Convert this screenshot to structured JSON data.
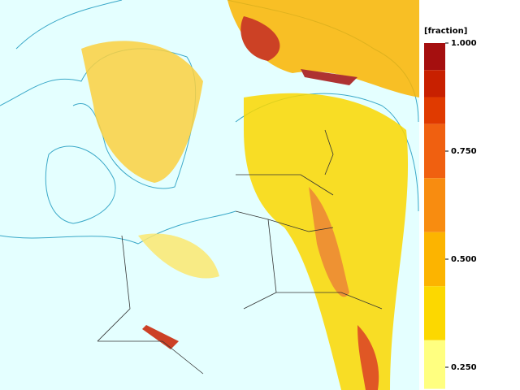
{
  "legend": {
    "unit": "[fraction]",
    "levels": [
      1,
      0.9375,
      0.875,
      0.8125,
      0.6875,
      0.5625,
      0.4375,
      0.3125,
      0.2
    ],
    "colors": [
      "#a50f0f",
      "#c82000",
      "#e03a00",
      "#f06010",
      "#f88c10",
      "#fcb400",
      "#fcd800",
      "#ffff80"
    ],
    "ticks": [
      {
        "value": 1,
        "label": "1.000"
      },
      {
        "value": 0.75,
        "label": "0.750"
      },
      {
        "value": 0.5,
        "label": "0.500"
      },
      {
        "value": 0.25,
        "label": "0.250"
      }
    ]
  }
}
